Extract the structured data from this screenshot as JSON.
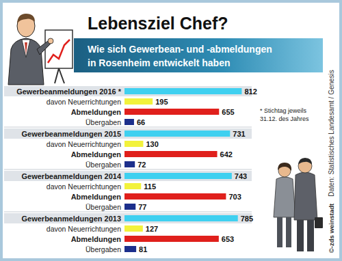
{
  "title": "Lebensziel Chef?",
  "subtitle": [
    "Wie sich Gewerbean- und -abmeldungen",
    "in Rosenheim entwickelt haben"
  ],
  "note": [
    "* Stichtag jeweils",
    "31.12. des Jahres"
  ],
  "source": "Daten: Statistisches Landesamt / Genesis",
  "credit": "©-zds weinstadt",
  "chart_data": [
    {
      "type": "bar",
      "orientation": "horizontal",
      "categories": [
        "Gewerbeanmeldungen 2016 *",
        "davon Neuerrichtungen",
        "Abmeldungen",
        "Übergaben"
      ],
      "values": [
        812,
        195,
        655,
        66
      ],
      "colors": [
        "#3fd0f0",
        "#f2f23c",
        "#e0201c",
        "#1c2f8c"
      ],
      "xlim": [
        0,
        900
      ],
      "data_labels": true,
      "tick_labels": "y"
    },
    {
      "type": "bar",
      "orientation": "horizontal",
      "categories": [
        "Gewerbeanmeldungen 2015",
        "davon Neuerrichtungen",
        "Abmeldungen",
        "Übergaben"
      ],
      "values": [
        731,
        130,
        642,
        72
      ],
      "colors": [
        "#3fd0f0",
        "#f2f23c",
        "#e0201c",
        "#1c2f8c"
      ],
      "xlim": [
        0,
        900
      ],
      "data_labels": true,
      "tick_labels": "y"
    },
    {
      "type": "bar",
      "orientation": "horizontal",
      "categories": [
        "Gewerbeanmeldungen 2014",
        "davon Neuerrichtungen",
        "Abmeldungen",
        "Übergaben"
      ],
      "values": [
        743,
        115,
        703,
        77
      ],
      "colors": [
        "#3fd0f0",
        "#f2f23c",
        "#e0201c",
        "#1c2f8c"
      ],
      "xlim": [
        0,
        900
      ],
      "data_labels": true,
      "tick_labels": "y"
    },
    {
      "type": "bar",
      "orientation": "horizontal",
      "categories": [
        "Gewerbeanmeldungen 2013",
        "davon Neuerrichtungen",
        "Abmeldungen",
        "Übergaben"
      ],
      "values": [
        785,
        127,
        653,
        81
      ],
      "colors": [
        "#3fd0f0",
        "#f2f23c",
        "#e0201c",
        "#1c2f8c"
      ],
      "xlim": [
        0,
        900
      ],
      "data_labels": true,
      "tick_labels": "y"
    }
  ]
}
